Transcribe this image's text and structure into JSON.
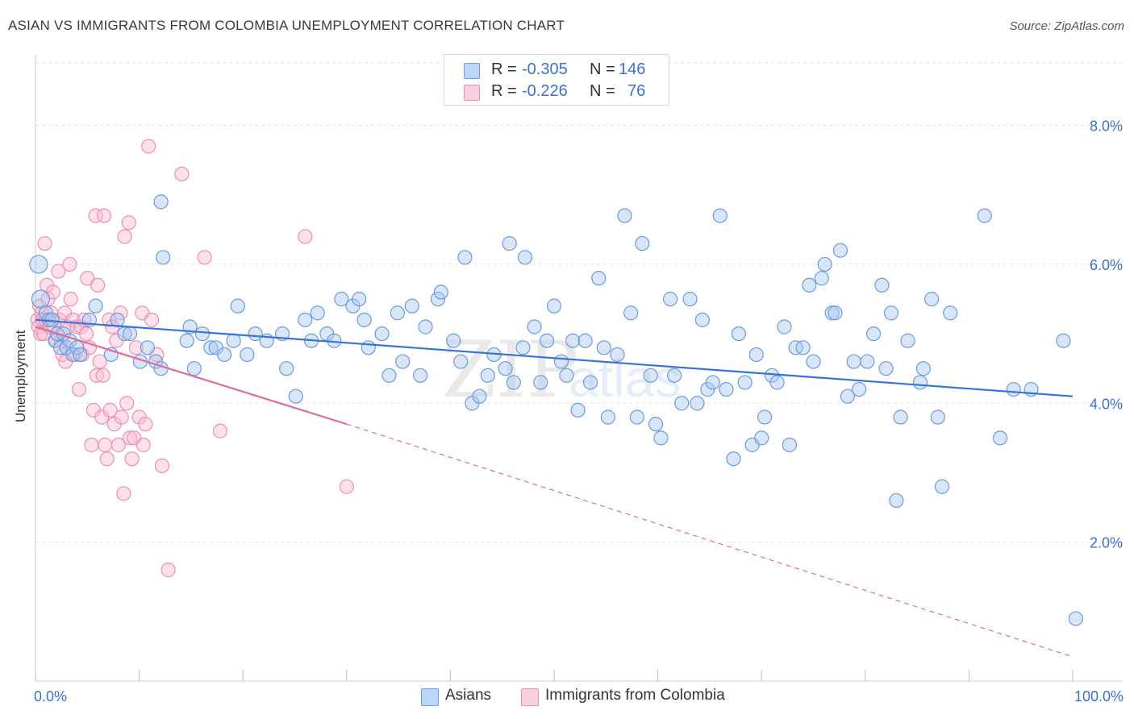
{
  "title": "ASIAN VS IMMIGRANTS FROM COLOMBIA UNEMPLOYMENT CORRELATION CHART",
  "source": "Source: ZipAtlas.com",
  "legend_top": {
    "rows": [
      {
        "r_label": "R =",
        "r_value": "-0.305",
        "n_label": "N =",
        "n_value": "146"
      },
      {
        "r_label": "R =",
        "r_value": "-0.226",
        "n_label": "N =",
        "n_value": "76"
      }
    ]
  },
  "legend_bottom": [
    "Asians",
    "Immigrants from Colombia"
  ],
  "colors": {
    "asians_fill": "#a8c8f0",
    "asians_stroke": "#6a9be0",
    "asians_line": "#3874d6",
    "colombia_fill": "#f8bcd0",
    "colombia_stroke": "#ec8eb0",
    "colombia_line": "#e06a98",
    "grid": "#e3e3e3",
    "tick_label": "#3b6fd6"
  },
  "chart_data": {
    "type": "scatter",
    "title": "ASIAN VS IMMIGRANTS FROM COLOMBIA UNEMPLOYMENT CORRELATION CHART",
    "xlabel": "",
    "ylabel": "Unemployment",
    "xlim": [
      0,
      100
    ],
    "ylim": [
      0,
      8.0
    ],
    "x_tick_labels": [
      "0.0%",
      "100.0%"
    ],
    "y_ticks": [
      2.0,
      4.0,
      6.0,
      8.0
    ],
    "y_tick_labels": [
      "2.0%",
      "4.0%",
      "6.0%",
      "8.0%"
    ],
    "grid": true,
    "legend_position": "top-center",
    "series": [
      {
        "name": "Asians",
        "r": -0.305,
        "n": 146,
        "trend": {
          "x": [
            0,
            100
          ],
          "y": [
            5.2,
            4.1
          ]
        },
        "points": [
          [
            0.3,
            6.0
          ],
          [
            0.5,
            5.5
          ],
          [
            1.0,
            5.3
          ],
          [
            1.3,
            5.2
          ],
          [
            1.6,
            5.2
          ],
          [
            1.9,
            4.9
          ],
          [
            2.1,
            5.0
          ],
          [
            2.4,
            4.8
          ],
          [
            2.7,
            5.0
          ],
          [
            3.0,
            4.8
          ],
          [
            3.3,
            4.9
          ],
          [
            3.6,
            4.7
          ],
          [
            4.0,
            4.8
          ],
          [
            4.3,
            4.7
          ],
          [
            5.2,
            5.2
          ],
          [
            5.8,
            5.4
          ],
          [
            7.3,
            4.7
          ],
          [
            7.9,
            5.2
          ],
          [
            8.6,
            5.0
          ],
          [
            9.1,
            5.0
          ],
          [
            10.1,
            4.6
          ],
          [
            10.8,
            4.8
          ],
          [
            11.6,
            4.6
          ],
          [
            12.1,
            4.5
          ],
          [
            12.3,
            6.1
          ],
          [
            14.6,
            4.9
          ],
          [
            14.9,
            5.1
          ],
          [
            15.3,
            4.5
          ],
          [
            16.1,
            5.0
          ],
          [
            16.9,
            4.8
          ],
          [
            17.4,
            4.8
          ],
          [
            18.2,
            4.7
          ],
          [
            19.1,
            4.9
          ],
          [
            19.5,
            5.4
          ],
          [
            20.4,
            4.7
          ],
          [
            21.2,
            5.0
          ],
          [
            22.3,
            4.9
          ],
          [
            23.8,
            5.0
          ],
          [
            24.2,
            4.5
          ],
          [
            25.1,
            4.1
          ],
          [
            26.0,
            5.2
          ],
          [
            26.6,
            4.9
          ],
          [
            27.2,
            5.3
          ],
          [
            28.1,
            5.0
          ],
          [
            28.8,
            4.9
          ],
          [
            29.5,
            5.5
          ],
          [
            30.6,
            5.4
          ],
          [
            31.2,
            5.5
          ],
          [
            31.7,
            5.2
          ],
          [
            32.1,
            4.8
          ],
          [
            33.4,
            5.0
          ],
          [
            34.1,
            4.4
          ],
          [
            34.9,
            5.3
          ],
          [
            35.4,
            4.6
          ],
          [
            36.3,
            5.4
          ],
          [
            37.1,
            4.4
          ],
          [
            37.6,
            5.1
          ],
          [
            38.8,
            5.5
          ],
          [
            39.1,
            5.6
          ],
          [
            40.3,
            4.9
          ],
          [
            41.0,
            4.6
          ],
          [
            41.4,
            6.1
          ],
          [
            42.1,
            4.0
          ],
          [
            42.8,
            4.1
          ],
          [
            43.6,
            4.4
          ],
          [
            44.2,
            4.7
          ],
          [
            45.3,
            4.5
          ],
          [
            45.7,
            6.3
          ],
          [
            46.1,
            4.3
          ],
          [
            47.0,
            4.8
          ],
          [
            47.2,
            6.1
          ],
          [
            48.1,
            5.1
          ],
          [
            48.7,
            4.3
          ],
          [
            49.3,
            4.9
          ],
          [
            50.0,
            5.4
          ],
          [
            50.7,
            4.6
          ],
          [
            51.2,
            4.4
          ],
          [
            51.8,
            4.9
          ],
          [
            52.3,
            3.9
          ],
          [
            53.0,
            4.9
          ],
          [
            53.5,
            4.3
          ],
          [
            54.3,
            5.8
          ],
          [
            54.8,
            4.8
          ],
          [
            55.2,
            3.8
          ],
          [
            56.1,
            4.7
          ],
          [
            56.8,
            6.7
          ],
          [
            57.4,
            5.3
          ],
          [
            58.0,
            3.8
          ],
          [
            58.5,
            6.3
          ],
          [
            59.3,
            4.4
          ],
          [
            59.8,
            3.7
          ],
          [
            60.3,
            3.5
          ],
          [
            61.2,
            5.5
          ],
          [
            61.6,
            4.4
          ],
          [
            62.3,
            4.0
          ],
          [
            63.1,
            5.5
          ],
          [
            63.8,
            4.0
          ],
          [
            64.3,
            5.2
          ],
          [
            64.8,
            4.2
          ],
          [
            65.3,
            4.3
          ],
          [
            66.0,
            6.7
          ],
          [
            66.6,
            4.2
          ],
          [
            67.3,
            3.2
          ],
          [
            67.8,
            5.0
          ],
          [
            68.4,
            4.3
          ],
          [
            69.1,
            3.4
          ],
          [
            69.5,
            4.7
          ],
          [
            70.0,
            3.5
          ],
          [
            70.3,
            3.8
          ],
          [
            71.0,
            4.4
          ],
          [
            71.5,
            4.3
          ],
          [
            72.2,
            5.1
          ],
          [
            72.7,
            3.4
          ],
          [
            73.3,
            4.8
          ],
          [
            74.0,
            4.8
          ],
          [
            74.6,
            5.7
          ],
          [
            75.0,
            4.6
          ],
          [
            75.8,
            5.8
          ],
          [
            76.1,
            6.0
          ],
          [
            76.8,
            5.3
          ],
          [
            77.1,
            5.3
          ],
          [
            77.6,
            6.2
          ],
          [
            78.3,
            4.1
          ],
          [
            78.9,
            4.6
          ],
          [
            79.4,
            4.2
          ],
          [
            80.2,
            4.6
          ],
          [
            80.8,
            5.0
          ],
          [
            81.6,
            5.7
          ],
          [
            82.0,
            4.5
          ],
          [
            82.5,
            5.3
          ],
          [
            83.4,
            3.8
          ],
          [
            83.0,
            2.6
          ],
          [
            84.1,
            4.9
          ],
          [
            85.3,
            4.3
          ],
          [
            85.6,
            4.5
          ],
          [
            86.4,
            5.5
          ],
          [
            87.0,
            3.8
          ],
          [
            87.4,
            2.8
          ],
          [
            88.2,
            5.3
          ],
          [
            91.5,
            6.7
          ],
          [
            93.0,
            3.5
          ],
          [
            94.3,
            4.2
          ],
          [
            96.0,
            4.2
          ],
          [
            99.1,
            4.9
          ],
          [
            100.3,
            0.9
          ],
          [
            12.1,
            6.9
          ]
        ]
      },
      {
        "name": "Immigrants from Colombia",
        "r": -0.226,
        "n": 76,
        "trend": {
          "x": [
            0,
            30
          ],
          "y": [
            5.1,
            3.7
          ]
        },
        "trend_dashed": {
          "x": [
            30,
            100
          ],
          "y": [
            3.7,
            0.35
          ]
        },
        "points": [
          [
            0.2,
            5.2
          ],
          [
            0.3,
            5.1
          ],
          [
            0.4,
            5.4
          ],
          [
            0.5,
            5.0
          ],
          [
            0.6,
            5.3
          ],
          [
            0.7,
            5.2
          ],
          [
            0.8,
            5.0
          ],
          [
            0.9,
            6.3
          ],
          [
            1.0,
            5.2
          ],
          [
            1.1,
            5.7
          ],
          [
            1.2,
            5.5
          ],
          [
            1.4,
            5.1
          ],
          [
            1.5,
            5.3
          ],
          [
            1.7,
            5.6
          ],
          [
            1.8,
            5.1
          ],
          [
            2.0,
            4.9
          ],
          [
            2.2,
            5.9
          ],
          [
            2.3,
            5.2
          ],
          [
            2.5,
            4.9
          ],
          [
            2.6,
            4.7
          ],
          [
            2.8,
            5.3
          ],
          [
            2.9,
            4.6
          ],
          [
            3.1,
            5.1
          ],
          [
            3.3,
            6.0
          ],
          [
            3.4,
            5.5
          ],
          [
            3.6,
            5.2
          ],
          [
            3.8,
            4.7
          ],
          [
            4.0,
            5.1
          ],
          [
            4.2,
            4.2
          ],
          [
            4.4,
            5.1
          ],
          [
            4.5,
            4.7
          ],
          [
            4.7,
            5.2
          ],
          [
            4.9,
            5.0
          ],
          [
            5.0,
            5.8
          ],
          [
            5.2,
            4.8
          ],
          [
            5.4,
            3.4
          ],
          [
            5.6,
            3.9
          ],
          [
            5.8,
            6.7
          ],
          [
            5.9,
            4.4
          ],
          [
            6.0,
            5.7
          ],
          [
            6.2,
            4.6
          ],
          [
            6.4,
            3.8
          ],
          [
            6.5,
            4.4
          ],
          [
            6.6,
            6.7
          ],
          [
            6.7,
            3.4
          ],
          [
            6.9,
            3.2
          ],
          [
            7.1,
            5.2
          ],
          [
            7.2,
            3.9
          ],
          [
            7.4,
            5.1
          ],
          [
            7.6,
            3.7
          ],
          [
            7.8,
            4.9
          ],
          [
            8.0,
            3.4
          ],
          [
            8.2,
            5.3
          ],
          [
            8.3,
            3.8
          ],
          [
            8.5,
            2.7
          ],
          [
            8.6,
            6.4
          ],
          [
            8.8,
            4.0
          ],
          [
            9.0,
            6.6
          ],
          [
            9.1,
            3.5
          ],
          [
            9.3,
            3.2
          ],
          [
            9.5,
            3.5
          ],
          [
            9.7,
            4.8
          ],
          [
            10.0,
            3.8
          ],
          [
            10.3,
            5.3
          ],
          [
            10.4,
            3.4
          ],
          [
            10.6,
            3.7
          ],
          [
            10.9,
            7.7
          ],
          [
            11.2,
            5.2
          ],
          [
            11.7,
            4.7
          ],
          [
            12.2,
            3.1
          ],
          [
            12.8,
            1.6
          ],
          [
            14.1,
            7.3
          ],
          [
            16.3,
            6.1
          ],
          [
            17.8,
            3.6
          ],
          [
            26.0,
            6.4
          ],
          [
            30.0,
            2.8
          ]
        ]
      }
    ]
  }
}
